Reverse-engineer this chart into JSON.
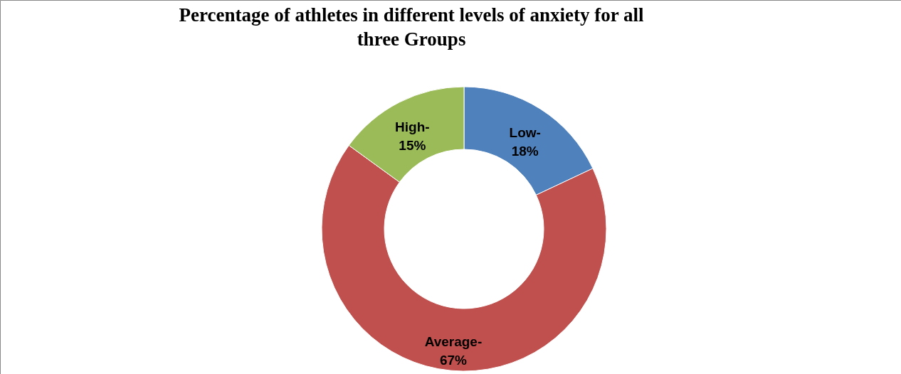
{
  "chart_data": {
    "type": "donut",
    "title": "Percentage of athletes in different levels of anxiety for all three Groups",
    "categories": [
      "Low-",
      "Average-",
      "High-"
    ],
    "values": [
      18,
      67,
      15
    ],
    "colors": [
      "#4f81bd",
      "#c0504d",
      "#9bbb59"
    ],
    "value_labels": [
      "18%",
      "67%",
      "15%"
    ],
    "legend": false
  }
}
